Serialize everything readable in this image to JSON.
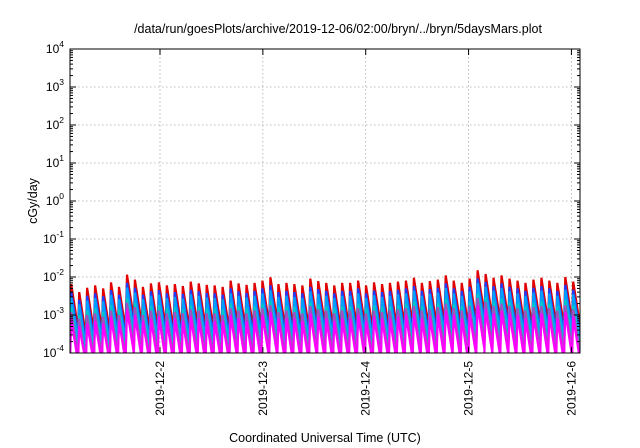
{
  "chart_data": {
    "type": "line",
    "title": "/data/run/goesPlots/archive/2019-12-06/02:00/bryn/../bryn/5daysMars.plot",
    "xlabel": "Coordinated Universal Time (UTC)",
    "ylabel": "cGy/day",
    "yscale": "log",
    "ylim": [
      0.0001,
      10000
    ],
    "xlim": [
      "2019-12-01T03:00",
      "2019-12-06T02:00"
    ],
    "grid": true,
    "legend": "none",
    "x_ticks": [
      "2019-12-2",
      "2019-12-3",
      "2019-12-4",
      "2019-12-5",
      "2019-12-6"
    ],
    "y_ticks": [
      {
        "base": "10",
        "exp": "-4"
      },
      {
        "base": "10",
        "exp": "-3"
      },
      {
        "base": "10",
        "exp": "-2"
      },
      {
        "base": "10",
        "exp": "-1"
      },
      {
        "base": "10",
        "exp": "0"
      },
      {
        "base": "10",
        "exp": "1"
      },
      {
        "base": "10",
        "exp": "2"
      },
      {
        "base": "10",
        "exp": "3"
      },
      {
        "base": "10",
        "exp": "4"
      }
    ],
    "series": [
      {
        "color": "#e00000",
        "peaks": [
          0.0065,
          0.004,
          0.0052,
          0.006,
          0.005,
          0.0072,
          0.0055,
          0.0115,
          0.0085,
          0.0055,
          0.0068,
          0.0072,
          0.006,
          0.0065,
          0.0058,
          0.0075,
          0.0068,
          0.0062,
          0.006,
          0.0055,
          0.008,
          0.0068,
          0.0062,
          0.007,
          0.008,
          0.0098,
          0.0065,
          0.007,
          0.0065,
          0.006,
          0.009,
          0.0078,
          0.007,
          0.006,
          0.007,
          0.007,
          0.008,
          0.006,
          0.0072,
          0.0065,
          0.007,
          0.0075,
          0.008,
          0.0095,
          0.007,
          0.0078,
          0.0085,
          0.011,
          0.008,
          0.007,
          0.009,
          0.015,
          0.012,
          0.0095,
          0.011,
          0.009,
          0.008,
          0.007,
          0.0085,
          0.0095,
          0.008,
          0.007,
          0.01,
          0.0075
        ]
      },
      {
        "color": "#1f3cff",
        "peaks": [
          0.004,
          0.0025,
          0.0032,
          0.0037,
          0.0031,
          0.0045,
          0.0034,
          0.007,
          0.0052,
          0.0034,
          0.0042,
          0.0045,
          0.0037,
          0.004,
          0.0036,
          0.0046,
          0.0042,
          0.0038,
          0.0037,
          0.0034,
          0.005,
          0.0042,
          0.0038,
          0.0043,
          0.005,
          0.006,
          0.004,
          0.0043,
          0.004,
          0.0037,
          0.0055,
          0.0048,
          0.0043,
          0.0037,
          0.0043,
          0.0043,
          0.005,
          0.0037,
          0.0044,
          0.004,
          0.0043,
          0.0046,
          0.005,
          0.0058,
          0.0043,
          0.0048,
          0.0052,
          0.0068,
          0.005,
          0.0043,
          0.0055,
          0.0092,
          0.0074,
          0.0058,
          0.0068,
          0.0055,
          0.005,
          0.0043,
          0.0052,
          0.0058,
          0.005,
          0.0043,
          0.0062,
          0.0046
        ]
      },
      {
        "color": "#00a0ff",
        "peaks": [
          0.003,
          0.0019,
          0.0024,
          0.0028,
          0.0023,
          0.0034,
          0.0026,
          0.0053,
          0.0039,
          0.0026,
          0.0032,
          0.0034,
          0.0028,
          0.003,
          0.0027,
          0.0035,
          0.0032,
          0.0029,
          0.0028,
          0.0026,
          0.0037,
          0.0032,
          0.0029,
          0.0032,
          0.0037,
          0.0045,
          0.003,
          0.0032,
          0.003,
          0.0028,
          0.0042,
          0.0036,
          0.0032,
          0.0028,
          0.0032,
          0.0032,
          0.0037,
          0.0028,
          0.0033,
          0.003,
          0.0032,
          0.0035,
          0.0037,
          0.0044,
          0.0032,
          0.0036,
          0.0039,
          0.0051,
          0.0037,
          0.0032,
          0.0042,
          0.0069,
          0.0055,
          0.0044,
          0.0051,
          0.0042,
          0.0037,
          0.0032,
          0.0039,
          0.0044,
          0.0037,
          0.0032,
          0.0046,
          0.0035
        ]
      },
      {
        "color": "#00c8c8",
        "peaks": [
          0.0016,
          0.001,
          0.0013,
          0.0015,
          0.0012,
          0.0018,
          0.0014,
          0.0028,
          0.0021,
          0.0014,
          0.0017,
          0.0018,
          0.0015,
          0.0016,
          0.0014,
          0.0018,
          0.0017,
          0.0015,
          0.0015,
          0.0014,
          0.002,
          0.0017,
          0.0015,
          0.0017,
          0.002,
          0.0024,
          0.0016,
          0.0017,
          0.0016,
          0.0015,
          0.0022,
          0.0019,
          0.0017,
          0.0015,
          0.0017,
          0.0017,
          0.002,
          0.0015,
          0.0018,
          0.0016,
          0.0017,
          0.0018,
          0.002,
          0.0023,
          0.0017,
          0.0019,
          0.0021,
          0.0027,
          0.002,
          0.0017,
          0.0022,
          0.0037,
          0.003,
          0.0023,
          0.0027,
          0.0022,
          0.002,
          0.0017,
          0.0021,
          0.0023,
          0.002,
          0.0017,
          0.0025,
          0.0018
        ]
      },
      {
        "color": "#a050c0",
        "peaks": [
          0.0012,
          0.0008,
          0.001,
          0.0011,
          0.0009,
          0.0013,
          0.001,
          0.0021,
          0.0016,
          0.001,
          0.0013,
          0.0013,
          0.0011,
          0.0012,
          0.0011,
          0.0014,
          0.0013,
          0.0011,
          0.0011,
          0.001,
          0.0015,
          0.0013,
          0.0011,
          0.0013,
          0.0015,
          0.0018,
          0.0012,
          0.0013,
          0.0012,
          0.0011,
          0.0017,
          0.0014,
          0.0013,
          0.0011,
          0.0013,
          0.0013,
          0.0015,
          0.0011,
          0.0013,
          0.0012,
          0.0013,
          0.0014,
          0.0015,
          0.0017,
          0.0013,
          0.0014,
          0.0016,
          0.002,
          0.0015,
          0.0013,
          0.0017,
          0.0028,
          0.0022,
          0.0017,
          0.002,
          0.0017,
          0.0015,
          0.0013,
          0.0016,
          0.0017,
          0.0015,
          0.0013,
          0.0018,
          0.0014
        ]
      },
      {
        "color": "#ff00ff",
        "peaks": [
          0.0008,
          0.0005,
          0.0006,
          0.0007,
          0.0006,
          0.0009,
          0.0007,
          0.0014,
          0.001,
          0.0007,
          0.0008,
          0.0009,
          0.0007,
          0.0008,
          0.0007,
          0.0009,
          0.0008,
          0.0007,
          0.0007,
          0.0007,
          0.001,
          0.0008,
          0.0007,
          0.0008,
          0.001,
          0.0012,
          0.0008,
          0.0008,
          0.0008,
          0.0007,
          0.0011,
          0.0009,
          0.0008,
          0.0007,
          0.0008,
          0.0008,
          0.001,
          0.0007,
          0.0009,
          0.0008,
          0.0008,
          0.0009,
          0.001,
          0.0011,
          0.0008,
          0.0009,
          0.001,
          0.0013,
          0.001,
          0.0008,
          0.0011,
          0.0018,
          0.0014,
          0.0011,
          0.0013,
          0.0011,
          0.001,
          0.0008,
          0.001,
          0.0011,
          0.001,
          0.0008,
          0.0012,
          0.0009
        ]
      }
    ]
  }
}
